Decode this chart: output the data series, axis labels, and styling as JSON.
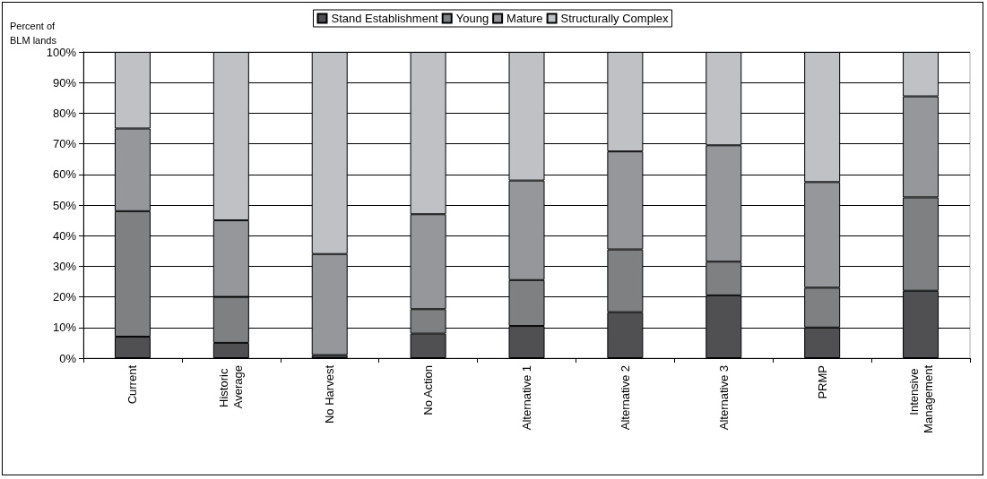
{
  "chart_data": {
    "type": "bar",
    "stacked": true,
    "ylabel": "Percent of BLM lands",
    "categories": [
      "Current",
      "Historic Average",
      "No Harvest",
      "No Action",
      "Alternative 1",
      "Alternative 2",
      "Alternative 3",
      "PRMP",
      "Intensive Management"
    ],
    "series": [
      {
        "name": "Stand Establishment",
        "color": "#505052",
        "values": [
          7,
          5,
          1,
          8,
          10.5,
          15,
          20.5,
          10,
          22
        ]
      },
      {
        "name": "Young",
        "color": "#7f8081",
        "values": [
          41,
          15,
          0,
          8,
          15,
          20.5,
          11,
          13,
          30.5
        ]
      },
      {
        "name": "Mature",
        "color": "#96979a",
        "values": [
          27,
          25,
          33,
          31,
          32.5,
          32,
          38,
          34.5,
          33
        ]
      },
      {
        "name": "Structurally Complex",
        "color": "#c0c1c4",
        "values": [
          25,
          55,
          66,
          53,
          42,
          32.5,
          30.5,
          42.5,
          14.5
        ]
      }
    ],
    "ylim": [
      0,
      100
    ],
    "yticks": [
      {
        "value": 0,
        "label": "0%"
      },
      {
        "value": 10,
        "label": "10%"
      },
      {
        "value": 20,
        "label": "20%"
      },
      {
        "value": 30,
        "label": "30%"
      },
      {
        "value": 40,
        "label": "40%"
      },
      {
        "value": 50,
        "label": "50%"
      },
      {
        "value": 60,
        "label": "60%"
      },
      {
        "value": 70,
        "label": "70%"
      },
      {
        "value": 80,
        "label": "80%"
      },
      {
        "value": 90,
        "label": "90%"
      },
      {
        "value": 100,
        "label": "100%"
      }
    ],
    "grid": "y",
    "legend": "top"
  }
}
